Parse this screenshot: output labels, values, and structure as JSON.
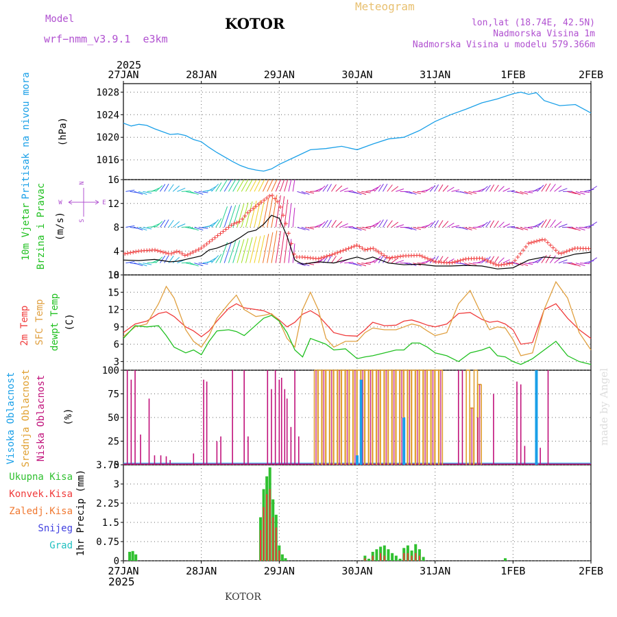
{
  "header": {
    "model_label": "Model",
    "model_name": "wrf−nmm_v3.9.1  e3km",
    "station": "KOTOR",
    "title": "Meteogram",
    "coords": "lon,lat (18.74E, 42.5N)",
    "elevation": "Nadmorska Visina 1m",
    "model_elevation": "Nadmorska Visina u modelu 579.366m",
    "year_top": "2025",
    "year_bottom": "2025",
    "footer_station": "KOTOR",
    "credit": "made by Angel"
  },
  "colors": {
    "pressure": "#1aa0e8",
    "wind_speed": "#000000",
    "gust": "#f03a3a",
    "temp2m": "#f03a3a",
    "sfc_temp": "#e0a040",
    "dewpt": "#20c020",
    "cloud_high": "#1aa0e8",
    "cloud_mid": "#e0a030",
    "cloud_low": "#c0107a",
    "precip_total": "#30c030",
    "precip_conv": "#f03a3a",
    "precip_frz": "#f07830",
    "snow": "#4040e0",
    "hail": "#20c0c0",
    "purple_text": "#b050d0",
    "title_gold": "#e8c070",
    "grid": "#666666"
  },
  "chart_data": [
    {
      "type": "line",
      "id": "pressure",
      "title": "Pritisak na nivou mora",
      "ylabel": "(hPa)",
      "ylim": [
        1012.5,
        1029.5
      ],
      "yticks": [
        1016,
        1020,
        1024,
        1028
      ],
      "x_days": [
        0,
        0.1,
        0.2,
        0.3,
        0.4,
        0.5,
        0.6,
        0.7,
        0.8,
        0.9,
        1.0,
        1.1,
        1.2,
        1.3,
        1.4,
        1.5,
        1.6,
        1.7,
        1.8,
        1.9,
        2.0,
        2.2,
        2.4,
        2.6,
        2.8,
        3.0,
        3.2,
        3.4,
        3.6,
        3.8,
        4.0,
        4.2,
        4.4,
        4.6,
        4.8,
        5.0,
        5.1,
        5.2,
        5.3,
        5.4,
        5.6,
        5.8,
        6.0
      ],
      "values": [
        1022.5,
        1022.0,
        1022.3,
        1022.1,
        1021.5,
        1021.0,
        1020.5,
        1020.6,
        1020.3,
        1019.6,
        1019.2,
        1018.2,
        1017.3,
        1016.5,
        1015.7,
        1015.0,
        1014.5,
        1014.2,
        1014.0,
        1014.4,
        1015.2,
        1016.5,
        1017.8,
        1018.0,
        1018.4,
        1017.8,
        1018.8,
        1019.7,
        1020.0,
        1021.2,
        1022.8,
        1024.0,
        1025.0,
        1026.1,
        1026.8,
        1027.7,
        1028.0,
        1027.6,
        1027.9,
        1026.5,
        1025.6,
        1025.8,
        1024.3
      ]
    },
    {
      "type": "line",
      "id": "wind",
      "title": "10m Vjetar",
      "subtitle": "Brzina i Pravac",
      "ylabel": "(m/s)",
      "ylim": [
        0,
        16
      ],
      "yticks": [
        0,
        4,
        8,
        12,
        16
      ],
      "compass": [
        "N",
        "E",
        "W",
        "S"
      ],
      "x_days": [
        0,
        0.2,
        0.4,
        0.6,
        0.7,
        0.8,
        1.0,
        1.1,
        1.2,
        1.3,
        1.4,
        1.5,
        1.6,
        1.7,
        1.8,
        1.9,
        2.0,
        2.1,
        2.2,
        2.3,
        2.5,
        2.7,
        3.0,
        3.1,
        3.2,
        3.4,
        3.6,
        3.8,
        4.0,
        4.2,
        4.4,
        4.6,
        4.8,
        5.0,
        5.2,
        5.4,
        5.6,
        5.8,
        6.0
      ],
      "speed": [
        2.5,
        2.4,
        2.6,
        2.2,
        2.3,
        2.6,
        3.2,
        4.2,
        4.5,
        5.0,
        5.5,
        6.3,
        7.2,
        7.5,
        8.5,
        10.0,
        9.5,
        6.5,
        2.5,
        1.8,
        2.2,
        2.0,
        3.0,
        2.6,
        3.0,
        2.0,
        1.7,
        1.8,
        1.5,
        1.5,
        1.6,
        1.5,
        1.0,
        1.2,
        2.5,
        3.0,
        2.8,
        3.5,
        3.8
      ],
      "gust": [
        3.5,
        4.0,
        4.2,
        3.5,
        4.0,
        3.2,
        4.5,
        5.5,
        6.5,
        7.5,
        8.5,
        9.0,
        10.5,
        11.5,
        12.5,
        13.5,
        12.0,
        8.0,
        3.0,
        3.0,
        2.7,
        3.5,
        5.0,
        4.2,
        4.5,
        2.8,
        3.2,
        3.3,
        2.2,
        2.0,
        2.7,
        2.8,
        1.6,
        2.0,
        5.3,
        6.0,
        3.5,
        4.5,
        4.4
      ],
      "arrow_rows": [
        2,
        8,
        14
      ]
    },
    {
      "type": "line",
      "id": "temperature",
      "ylabel": "(C)",
      "series_labels": [
        "2m Temp",
        "SFC Temp",
        "dewpt Temp"
      ],
      "ylim": [
        1.5,
        18
      ],
      "yticks": [
        3,
        6,
        9,
        12,
        15,
        18
      ],
      "x_days": [
        0,
        0.15,
        0.3,
        0.45,
        0.55,
        0.65,
        0.8,
        0.9,
        1.0,
        1.1,
        1.2,
        1.35,
        1.45,
        1.55,
        1.7,
        1.8,
        1.9,
        2.0,
        2.1,
        2.2,
        2.3,
        2.4,
        2.5,
        2.6,
        2.7,
        2.85,
        3.0,
        3.1,
        3.2,
        3.35,
        3.5,
        3.6,
        3.7,
        3.8,
        3.9,
        4.0,
        4.15,
        4.3,
        4.45,
        4.6,
        4.7,
        4.8,
        4.9,
        5.0,
        5.1,
        5.25,
        5.4,
        5.55,
        5.7,
        5.85,
        6.0
      ],
      "series": [
        {
          "name": "2m Temp",
          "values": [
            8.0,
            9.5,
            10.0,
            11.3,
            11.6,
            10.8,
            9.0,
            8.3,
            7.3,
            8.3,
            10.0,
            12.2,
            13.0,
            12.3,
            12.0,
            11.8,
            11.2,
            10.2,
            9.0,
            9.8,
            11.2,
            11.8,
            11.0,
            9.5,
            8.0,
            7.5,
            7.4,
            8.5,
            9.8,
            9.2,
            9.3,
            10.0,
            10.2,
            9.8,
            9.3,
            9.0,
            9.5,
            11.3,
            11.5,
            10.3,
            9.8,
            10.0,
            9.5,
            8.5,
            6.0,
            6.3,
            12.0,
            13.0,
            10.5,
            8.5,
            7.0
          ]
        },
        {
          "name": "SFC Temp",
          "values": [
            7.3,
            9.0,
            9.5,
            13.0,
            16.0,
            14.0,
            8.5,
            6.5,
            5.5,
            7.5,
            10.5,
            13.0,
            14.5,
            12.0,
            10.8,
            11.0,
            11.3,
            10.0,
            7.0,
            5.5,
            12.0,
            15.0,
            12.0,
            7.0,
            5.5,
            6.5,
            6.5,
            8.0,
            8.8,
            8.5,
            8.5,
            9.0,
            9.5,
            9.2,
            8.3,
            7.5,
            8.0,
            13.0,
            15.3,
            11.0,
            8.5,
            9.0,
            8.8,
            6.8,
            4.0,
            4.5,
            12.0,
            16.8,
            14.0,
            8.0,
            5.0
          ]
        },
        {
          "name": "dewpt Temp",
          "values": [
            7.0,
            9.2,
            9.0,
            9.2,
            7.5,
            5.5,
            4.5,
            5.0,
            4.2,
            6.5,
            8.3,
            8.5,
            8.2,
            7.5,
            9.3,
            10.5,
            11.0,
            10.0,
            8.0,
            5.0,
            3.8,
            7.0,
            6.5,
            6.0,
            5.0,
            5.2,
            3.5,
            3.8,
            4.0,
            4.5,
            5.0,
            5.0,
            6.2,
            6.2,
            5.5,
            4.5,
            4.0,
            3.0,
            4.5,
            5.0,
            5.5,
            4.0,
            3.8,
            3.0,
            2.5,
            3.5,
            5.0,
            6.5,
            4.0,
            3.0,
            2.5
          ]
        }
      ]
    },
    {
      "type": "bar",
      "id": "clouds",
      "ylabel": "(%)",
      "series_labels": [
        "Visoka Oblacnost",
        "Srednja Oblacnost",
        "Niska Oblacnost"
      ],
      "ylim": [
        0,
        100
      ],
      "yticks": [
        0,
        25,
        50,
        75,
        100
      ],
      "low_x_days": [
        0.05,
        0.1,
        0.15,
        0.22,
        0.33,
        0.4,
        0.48,
        0.55,
        0.6,
        0.9,
        1.03,
        1.07,
        1.2,
        1.25,
        1.4,
        1.55,
        1.6,
        1.85,
        1.9,
        1.95,
        2.0,
        2.03,
        2.07,
        2.1,
        2.15,
        2.2,
        2.25,
        4.3,
        4.35,
        4.55,
        4.75,
        5.05,
        5.1,
        5.15,
        5.35,
        5.45
      ],
      "low_values": [
        100,
        90,
        100,
        32,
        70,
        10,
        10,
        9,
        5,
        12,
        90,
        88,
        25,
        30,
        100,
        100,
        30,
        100,
        80,
        100,
        90,
        92,
        80,
        70,
        40,
        100,
        30,
        100,
        100,
        50,
        75,
        88,
        85,
        20,
        18,
        100
      ],
      "mid_x_days": [
        2.45,
        2.5,
        2.55,
        2.6,
        2.65,
        2.7,
        2.75,
        2.8,
        2.85,
        2.9,
        2.95,
        3.0,
        3.05,
        3.1,
        3.15,
        3.2,
        3.25,
        3.3,
        3.35,
        3.4,
        3.45,
        3.5,
        3.55,
        3.6,
        3.65,
        3.7,
        3.75,
        3.8,
        3.85,
        3.9,
        3.95,
        4.0,
        4.05,
        4.4,
        4.45,
        4.5,
        4.55
      ],
      "mid_values": [
        100,
        100,
        100,
        100,
        100,
        100,
        100,
        100,
        100,
        100,
        100,
        100,
        100,
        100,
        100,
        100,
        100,
        100,
        100,
        100,
        100,
        100,
        100,
        100,
        100,
        100,
        100,
        100,
        100,
        100,
        100,
        100,
        100,
        100,
        60,
        100,
        85
      ],
      "high_x_days": [
        3.0,
        3.05,
        3.6,
        5.3
      ],
      "high_values": [
        10,
        90,
        50,
        100
      ]
    },
    {
      "type": "bar",
      "id": "precip",
      "ylabel": "1hr Precip (mm)",
      "ylim": [
        0,
        3.75
      ],
      "yticks": [
        0,
        0.75,
        1.5,
        2.25,
        3,
        3.75
      ],
      "legend": [
        "Ukupna Kisa",
        "Konvek.Kisa",
        "Zaledj.Kisa",
        "Snijeg",
        "Grad"
      ],
      "x_days": [
        0.08,
        0.12,
        0.16,
        1.76,
        1.8,
        1.84,
        1.88,
        1.92,
        1.96,
        2.0,
        2.04,
        2.08,
        3.1,
        3.15,
        3.2,
        3.25,
        3.3,
        3.35,
        3.4,
        3.45,
        3.5,
        3.55,
        3.6,
        3.65,
        3.7,
        3.75,
        3.8,
        3.85,
        4.9
      ],
      "total": [
        0.35,
        0.38,
        0.25,
        1.7,
        2.8,
        3.3,
        3.65,
        2.4,
        1.8,
        0.6,
        0.25,
        0.1,
        0.2,
        0.08,
        0.35,
        0.45,
        0.55,
        0.6,
        0.45,
        0.3,
        0.2,
        0.08,
        0.5,
        0.6,
        0.4,
        0.65,
        0.45,
        0.15,
        0.1
      ],
      "convective": [
        0,
        0,
        0,
        1.2,
        2.1,
        2.6,
        2.8,
        1.7,
        1.3,
        0.4,
        0,
        0,
        0.1,
        0,
        0.2,
        0,
        0.3,
        0.2,
        0,
        0,
        0,
        0,
        0.3,
        0.3,
        0.2,
        0.3,
        0.2,
        0,
        0
      ]
    }
  ],
  "x_axis": {
    "tick_labels": [
      "27JAN",
      "28JAN",
      "29JAN",
      "30JAN",
      "31JAN",
      "1FEB",
      "2FEB"
    ],
    "tick_days": [
      0,
      1,
      2,
      3,
      4,
      5,
      6
    ]
  }
}
